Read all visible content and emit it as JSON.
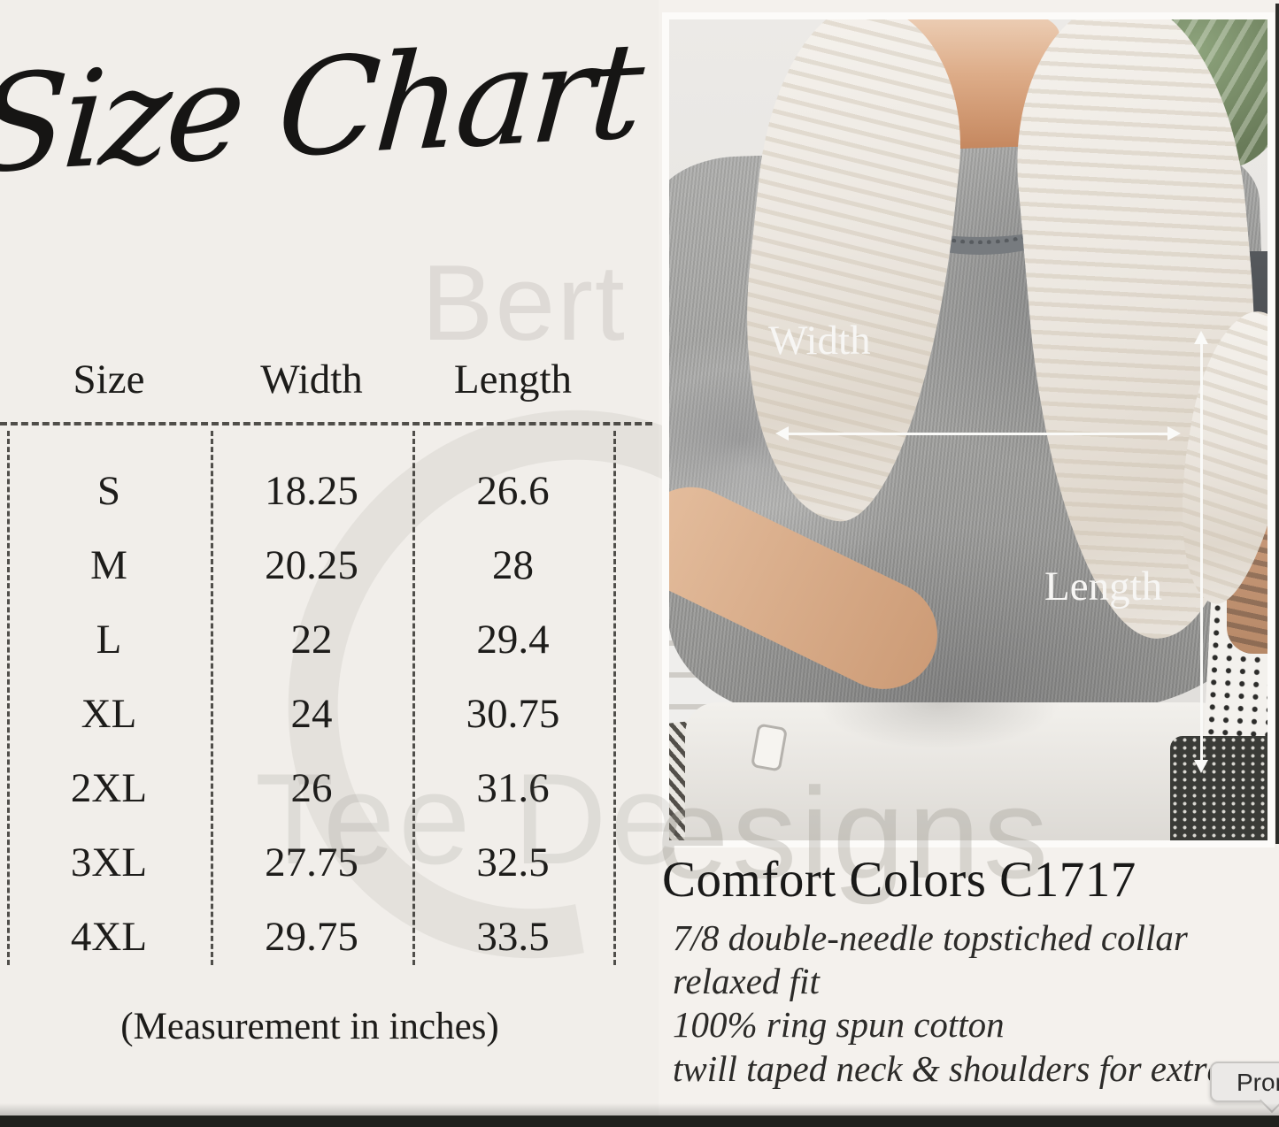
{
  "heading": "Size Chart",
  "size_table": {
    "columns": [
      "Size",
      "Width",
      "Length"
    ],
    "rows": [
      [
        "S",
        "18.25",
        "26.6"
      ],
      [
        "M",
        "20.25",
        "28"
      ],
      [
        "L",
        "22",
        "29.4"
      ],
      [
        "XL",
        "24",
        "30.75"
      ],
      [
        "2XL",
        "26",
        "31.6"
      ],
      [
        "3XL",
        "27.75",
        "32.5"
      ],
      [
        "4XL",
        "29.75",
        "33.5"
      ]
    ],
    "note": "(Measurement in inches)"
  },
  "photo": {
    "width_label": "Width",
    "length_label": "Length"
  },
  "product": {
    "title": "Comfort Colors C1717",
    "details": [
      "7/8 double-needle topstiched collar",
      "relaxed fit",
      "100% ring spun cotton",
      "twill taped neck & shoulders for extra"
    ]
  },
  "watermark": {
    "top_fragment": "Bert",
    "left_fragment": "Tee De",
    "right_fragment": "esigns"
  },
  "overlay": {
    "tooltip_text": "Prom"
  },
  "colors": {
    "page_bg": "#f1eeea",
    "right_bg": "#f4f1ed",
    "text": "#1d1c1a",
    "bottom_bar": "#20211d",
    "tooltip_bg": "#ebe9e7",
    "tee_gray": "#9c9c9a",
    "arrow_white": "#fafaf8"
  }
}
